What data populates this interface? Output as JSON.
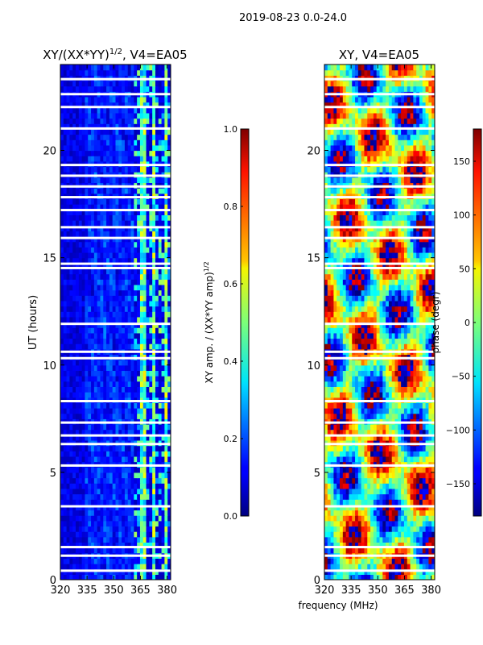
{
  "suptitle": "2019-08-23 0.0-24.0",
  "xlabel": "frequency (MHz)",
  "chart_data": [
    {
      "type": "heatmap",
      "title_main": "XY/(XX*YY)",
      "title_exp": "1/2",
      "title_tail": ", V4=EA05",
      "ylabel": "UT (hours)",
      "x_range": [
        320,
        382
      ],
      "y_range": [
        0,
        24
      ],
      "x_ticks": [
        320,
        335,
        350,
        365,
        380
      ],
      "y_ticks": [
        0,
        5,
        10,
        15,
        20
      ],
      "value_range": [
        0.0,
        1.0
      ],
      "dominant_value": 0.05,
      "bright_bands_mhz": [
        [
          364,
          368
        ],
        [
          372,
          374
        ],
        [
          378,
          381
        ]
      ],
      "gap_hours": [
        0.4,
        1.1,
        1.5,
        3.4,
        5.3,
        6.3,
        6.7,
        7.3,
        8.3,
        10.3,
        10.6,
        11.9,
        14.5,
        14.7,
        15.9,
        16.4,
        17.2,
        17.8,
        18.3,
        18.8,
        19.3,
        21.0,
        22.0,
        22.6,
        23.3
      ],
      "colorbar": {
        "label_main": "XY amp. / (XX*YY amp)",
        "label_exp": "1/2",
        "min": 0.0,
        "max": 1.0,
        "ticks": [
          "0.0",
          "0.2",
          "0.4",
          "0.6",
          "0.8",
          "1.0"
        ]
      }
    },
    {
      "type": "heatmap",
      "title": "XY, V4=EA05",
      "x_range": [
        320,
        382
      ],
      "y_range": [
        0,
        24
      ],
      "x_ticks": [
        320,
        335,
        350,
        365,
        380
      ],
      "y_ticks": [
        0,
        5,
        10,
        15,
        20
      ],
      "value_range": [
        -180,
        180
      ],
      "gap_hours": [
        0.4,
        1.1,
        1.5,
        3.4,
        5.3,
        6.3,
        6.7,
        7.3,
        8.3,
        10.3,
        10.6,
        11.9,
        14.5,
        14.7,
        15.9,
        16.4,
        17.2,
        17.8,
        18.3,
        18.8,
        19.3,
        21.0,
        22.0,
        22.6,
        23.3
      ],
      "colorbar": {
        "label": "phase (degr)",
        "min": -180,
        "max": 180,
        "ticks": [
          "−150",
          "−100",
          "−50",
          "0",
          "50",
          "100",
          "150"
        ]
      }
    }
  ]
}
